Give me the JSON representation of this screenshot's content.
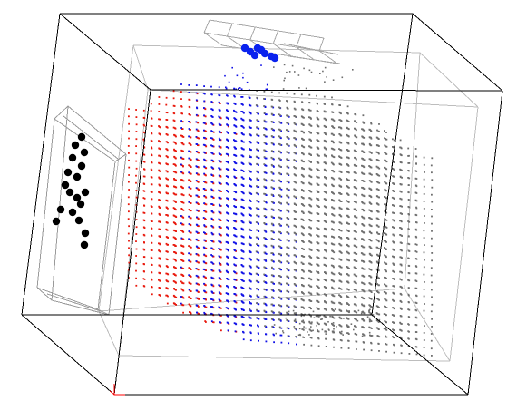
{
  "scene": {
    "type": "3d-point-cloud",
    "colors": {
      "background": "#ffffff",
      "outer_box": "#000000",
      "inner_box": "#bdbdbd",
      "side_panel": "#9a9a9a",
      "top_panel": "#a8a8a8",
      "origin_axis": "#ff0000",
      "cloud_red": "#e8180c",
      "cloud_blue": "#1010e6",
      "cloud_gray": "#6e6e6e",
      "marker_black": "#000000",
      "marker_blue": "#0a22ee"
    },
    "point_groups": [
      {
        "name": "red-points",
        "color": "#e8180c"
      },
      {
        "name": "blue-points",
        "color": "#1010e6"
      },
      {
        "name": "gray-points",
        "color": "#6e6e6e"
      },
      {
        "name": "black-marker-points",
        "color": "#000000"
      },
      {
        "name": "blue-marker-points",
        "color": "#0a22ee"
      }
    ]
  }
}
